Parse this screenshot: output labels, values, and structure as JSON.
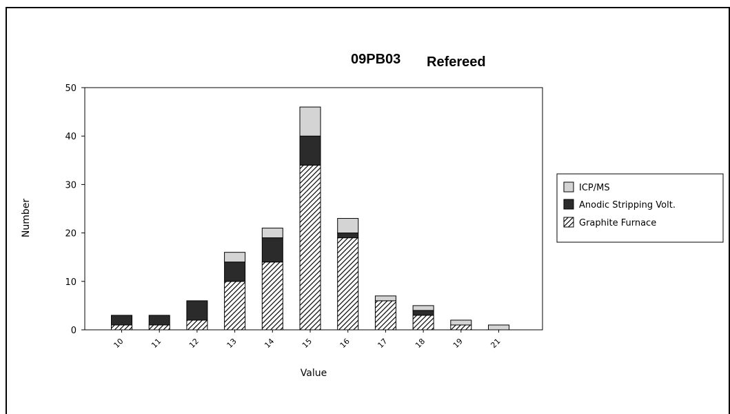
{
  "chart_data": {
    "type": "bar",
    "stacked": true,
    "title_parts": [
      "09PB03",
      "Refereed"
    ],
    "xlabel": "Value",
    "ylabel": "Number",
    "ylim": [
      0,
      50
    ],
    "yticks": [
      "0",
      "10",
      "20",
      "30",
      "40",
      "50"
    ],
    "categories": [
      "10",
      "11",
      "12",
      "13",
      "14",
      "15",
      "16",
      "17",
      "18",
      "19",
      "21"
    ],
    "series": [
      {
        "name": "Graphite Furnace",
        "values": [
          1,
          1,
          2,
          10,
          14,
          34,
          19,
          6,
          3,
          1,
          0
        ],
        "pattern": "hatch",
        "color": "#ffffff"
      },
      {
        "name": "Anodic Stripping Volt.",
        "values": [
          2,
          2,
          4,
          4,
          5,
          6,
          1,
          0,
          1,
          0,
          0
        ],
        "color": "#2b2b2b"
      },
      {
        "name": "ICP/MS",
        "values": [
          0,
          0,
          0,
          2,
          2,
          6,
          3,
          1,
          1,
          1,
          1
        ],
        "color": "#d4d4d4"
      }
    ],
    "legend_order": [
      "ICP/MS",
      "Anodic Stripping Volt.",
      "Graphite Furnace"
    ],
    "legend_position": "right",
    "grid": false
  }
}
